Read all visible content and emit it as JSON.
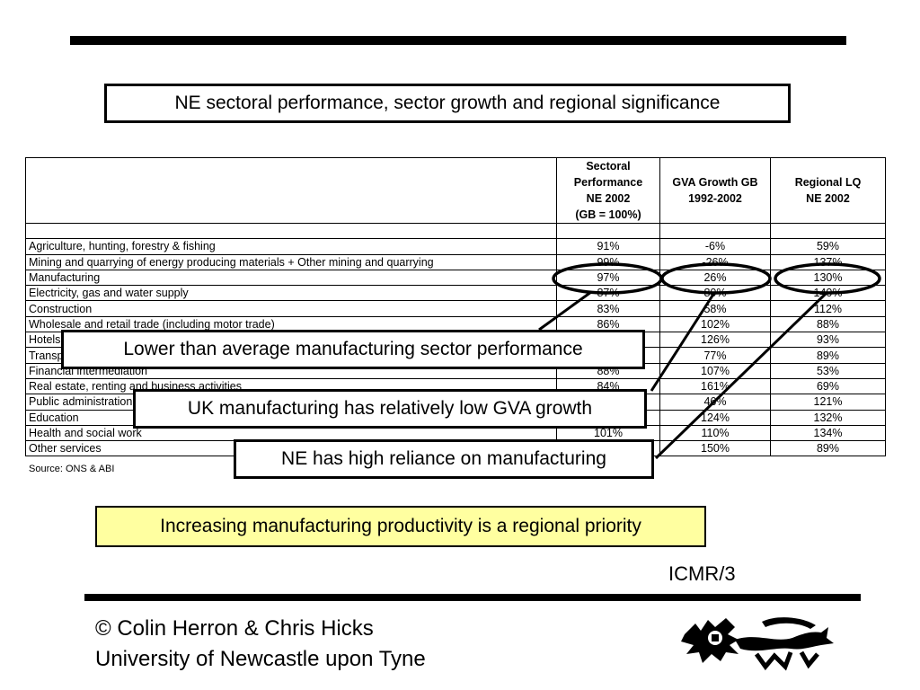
{
  "title": "NE sectoral performance, sector growth and regional significance",
  "table": {
    "headers": {
      "col1": [
        "Sectoral",
        "Performance",
        "NE 2002",
        "(GB = 100%)"
      ],
      "col2": [
        "GVA Growth GB",
        "1992-2002"
      ],
      "col3": [
        "Regional LQ",
        "NE 2002"
      ]
    },
    "rows": [
      {
        "sector": "Agriculture, hunting, forestry & fishing",
        "perf": "91%",
        "growth": "-6%",
        "lq": "59%"
      },
      {
        "sector": "Mining and quarrying of energy producing materials + Other mining and quarrying",
        "perf": "99%",
        "growth": "-26%",
        "lq": "137%"
      },
      {
        "sector": "Manufacturing",
        "perf": "97%",
        "growth": "26%",
        "lq": "130%"
      },
      {
        "sector": "Electricity, gas and water supply",
        "perf": "87%",
        "growth": "80%",
        "lq": "140%"
      },
      {
        "sector": "Construction",
        "perf": "83%",
        "growth": "58%",
        "lq": "112%"
      },
      {
        "sector": "Wholesale and retail trade (including motor trade)",
        "perf": "86%",
        "growth": "102%",
        "lq": "88%"
      },
      {
        "sector": "Hotels and restaurants",
        "perf": "",
        "growth": "126%",
        "lq": "93%"
      },
      {
        "sector": "Transport, storage and communication",
        "perf": "",
        "growth": "77%",
        "lq": "89%"
      },
      {
        "sector": "Financial intermediation",
        "perf": "88%",
        "growth": "107%",
        "lq": "53%"
      },
      {
        "sector": "Real estate, renting and business activities",
        "perf": "84%",
        "growth": "161%",
        "lq": "69%"
      },
      {
        "sector": "Public administration",
        "perf": "",
        "growth": "46%",
        "lq": "121%"
      },
      {
        "sector": "Education",
        "perf": "",
        "growth": "124%",
        "lq": "132%"
      },
      {
        "sector": "Health and social work",
        "perf": "101%",
        "growth": "110%",
        "lq": "134%"
      },
      {
        "sector": "Other services",
        "perf": "",
        "growth": "150%",
        "lq": "89%"
      }
    ]
  },
  "source": "Source: ONS & ABI",
  "callouts": {
    "c1": "Lower than average manufacturing sector performance",
    "c2": "UK manufacturing has relatively low GVA growth",
    "c3": "NE has high reliance on manufacturing"
  },
  "highlight": "Increasing manufacturing productivity is a regional priority",
  "slide_id": "ICMR/3",
  "footer": {
    "line1": "© Colin Herron & Chris Hicks",
    "line2": "University of Newcastle upon Tyne"
  },
  "colors": {
    "highlight_bg": "#ffffa0"
  },
  "logo_icon": "lion-crest-icon"
}
